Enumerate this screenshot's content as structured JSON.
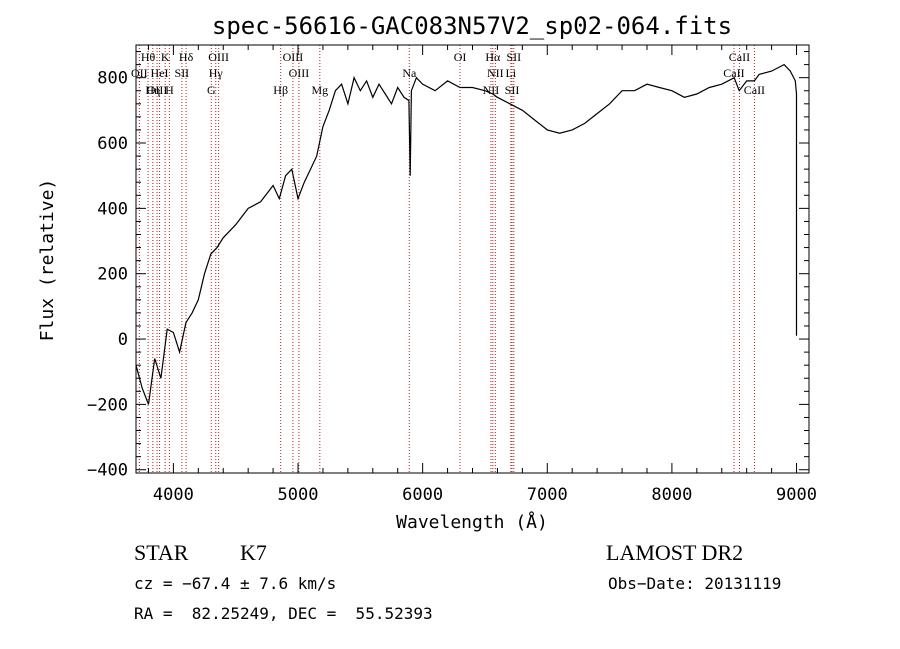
{
  "chart_data": {
    "type": "line",
    "title": "spec-56616-GAC083N57V2_sp02-064.fits",
    "xlabel": "Wavelength (Å)",
    "ylabel": "Flux (relative)",
    "xlim": [
      3700,
      9100
    ],
    "ylim": [
      -410,
      900
    ],
    "grid": false,
    "x_ticks": [
      4000,
      5000,
      6000,
      7000,
      8000,
      9000
    ],
    "x_tick_labels": [
      "4000",
      "5000",
      "6000",
      "7000",
      "8000",
      "9000"
    ],
    "y_ticks": [
      -400,
      -200,
      0,
      200,
      400,
      600,
      800
    ],
    "y_tick_labels": [
      "−400",
      "−200",
      "0",
      "200",
      "400",
      "600",
      "800"
    ],
    "series": [
      {
        "x": [
          3700,
          3750,
          3800,
          3850,
          3900,
          3950,
          4000,
          4050,
          4100,
          4150,
          4200,
          4250,
          4300,
          4350,
          4400,
          4450,
          4500,
          4600,
          4700,
          4800,
          4850,
          4900,
          4950,
          5000,
          5050,
          5100,
          5150,
          5200,
          5250,
          5300,
          5350,
          5400,
          5450,
          5500,
          5550,
          5600,
          5650,
          5700,
          5750,
          5800,
          5850,
          5890,
          5900,
          5910,
          5950,
          6000,
          6100,
          6200,
          6300,
          6400,
          6500,
          6563,
          6600,
          6700,
          6800,
          6900,
          7000,
          7100,
          7200,
          7300,
          7400,
          7500,
          7600,
          7700,
          7800,
          7900,
          8000,
          8100,
          8200,
          8300,
          8400,
          8500,
          8540,
          8600,
          8662,
          8700,
          8800,
          8850,
          8900,
          8950,
          8990,
          9000,
          9000
        ],
        "y": [
          -80,
          -150,
          -200,
          -60,
          -120,
          30,
          20,
          -40,
          50,
          80,
          120,
          200,
          260,
          280,
          310,
          330,
          350,
          400,
          420,
          470,
          430,
          500,
          520,
          430,
          480,
          520,
          560,
          650,
          700,
          760,
          780,
          720,
          800,
          760,
          790,
          740,
          780,
          750,
          720,
          770,
          740,
          730,
          500,
          760,
          800,
          780,
          760,
          790,
          770,
          770,
          760,
          750,
          740,
          720,
          700,
          670,
          640,
          630,
          640,
          660,
          690,
          720,
          760,
          760,
          780,
          770,
          760,
          740,
          750,
          770,
          780,
          800,
          760,
          790,
          790,
          810,
          820,
          830,
          840,
          820,
          790,
          750,
          10
        ]
      }
    ],
    "lines": [
      {
        "label": "Hθ",
        "x": 3797,
        "row": 0
      },
      {
        "label": "K",
        "x": 3934,
        "row": 0
      },
      {
        "label": "Hδ",
        "x": 4102,
        "row": 0
      },
      {
        "label": "OIII",
        "x": 4363,
        "row": 0
      },
      {
        "label": "OIII",
        "x": 4959,
        "row": 0
      },
      {
        "label": "OI",
        "x": 6300,
        "row": 0
      },
      {
        "label": "Hα",
        "x": 6563,
        "row": 0
      },
      {
        "label": "SII",
        "x": 6731,
        "row": 0
      },
      {
        "label": "CaII",
        "x": 8542,
        "row": 0
      },
      {
        "label": "OII",
        "x": 3727,
        "row": 1
      },
      {
        "label": "HeI",
        "x": 3889,
        "row": 1
      },
      {
        "label": "SII",
        "x": 4068,
        "row": 1
      },
      {
        "label": "Hγ",
        "x": 4340,
        "row": 1
      },
      {
        "label": "OIII",
        "x": 5007,
        "row": 1
      },
      {
        "label": "Na",
        "x": 5893,
        "row": 1
      },
      {
        "label": "NII",
        "x": 6583,
        "row": 1
      },
      {
        "label": "Li",
        "x": 6708,
        "row": 1
      },
      {
        "label": "CaII",
        "x": 8498,
        "row": 1
      },
      {
        "label": "OIII",
        "x": 3869,
        "row": 2
      },
      {
        "label": "Hη",
        "x": 3835,
        "row": 2
      },
      {
        "label": "H",
        "x": 3968,
        "row": 2
      },
      {
        "label": "G",
        "x": 4304,
        "row": 2
      },
      {
        "label": "Hβ",
        "x": 4861,
        "row": 2
      },
      {
        "label": "Mg",
        "x": 5175,
        "row": 2
      },
      {
        "label": "NII",
        "x": 6548,
        "row": 2
      },
      {
        "label": "SII",
        "x": 6717,
        "row": 2
      },
      {
        "label": "CaII",
        "x": 8662,
        "row": 2
      }
    ]
  },
  "info": {
    "class_label": "STAR",
    "subclass": "K7",
    "survey": "LAMOST DR2",
    "cz": "cz = −67.4 ± 7.6 km/s",
    "obs_date": "Obs−Date: 20131119",
    "coords": "RA =  82.25249, DEC =  55.52393"
  },
  "colors": {
    "spectrum": "#000000",
    "line_markers": "#b22222",
    "text": "#000000"
  }
}
